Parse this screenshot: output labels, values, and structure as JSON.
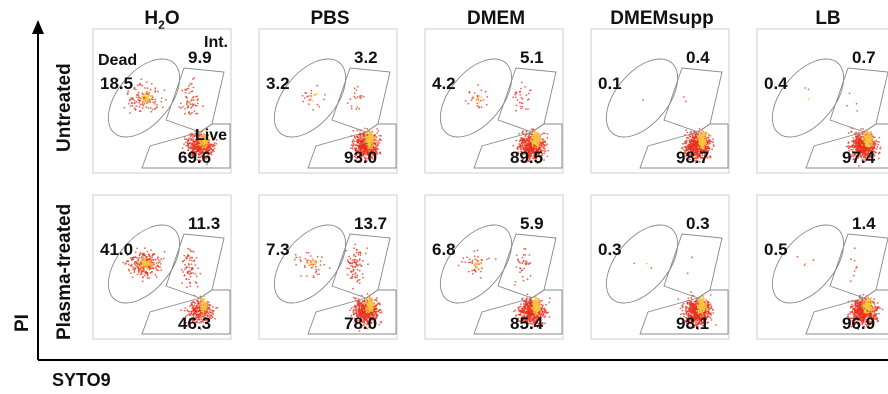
{
  "columns": [
    "H₂O",
    "PBS",
    "DMEM",
    "DMEMsupp",
    "LB"
  ],
  "rows": [
    "Untreated",
    "Plasma-treated"
  ],
  "y_axis_label": "PI",
  "x_axis_label": "SYTO9",
  "gate_labels": {
    "dead": "Dead",
    "intermediate": "Int.",
    "live": "Live"
  },
  "panels": [
    [
      {
        "dead": "18.5",
        "intermediate": "9.9",
        "live": "69.6"
      },
      {
        "dead": "3.2",
        "intermediate": "3.2",
        "live": "93.0"
      },
      {
        "dead": "4.2",
        "intermediate": "5.1",
        "live": "89.5"
      },
      {
        "dead": "0.1",
        "intermediate": "0.4",
        "live": "98.7"
      },
      {
        "dead": "0.4",
        "intermediate": "0.7",
        "live": "97.4"
      }
    ],
    [
      {
        "dead": "41.0",
        "intermediate": "11.3",
        "live": "46.3"
      },
      {
        "dead": "7.3",
        "intermediate": "13.7",
        "live": "78.0"
      },
      {
        "dead": "6.8",
        "intermediate": "5.9",
        "live": "85.4"
      },
      {
        "dead": "0.3",
        "intermediate": "0.3",
        "live": "98.1"
      },
      {
        "dead": "0.5",
        "intermediate": "1.4",
        "live": "96.9"
      }
    ]
  ],
  "colors": {
    "dots": "#e8321e",
    "dense": "#f5c542",
    "gate": "#888888",
    "axis": "#000000"
  }
}
